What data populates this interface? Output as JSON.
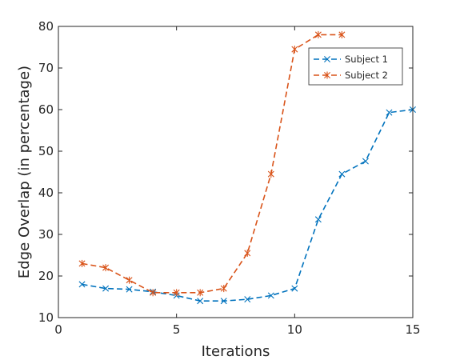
{
  "chart_data": {
    "type": "line",
    "title": "",
    "xlabel": "Iterations",
    "ylabel": "Edge Overlap (in percentage)",
    "xlim": [
      0,
      15
    ],
    "ylim": [
      10,
      80
    ],
    "xticks": [
      0,
      5,
      10,
      15
    ],
    "yticks": [
      10,
      20,
      30,
      40,
      50,
      60,
      70,
      80
    ],
    "grid": false,
    "legend_position": "top-right",
    "series": [
      {
        "name": "Subject 1",
        "color": "#0072BD",
        "marker": "x",
        "line_style": "dashed",
        "x": [
          1,
          2,
          3,
          4,
          5,
          6,
          7,
          8,
          9,
          10,
          11,
          12,
          13,
          14,
          15
        ],
        "y": [
          18,
          17,
          16.8,
          16.2,
          15.3,
          14,
          14,
          14.4,
          15.3,
          17,
          33.6,
          44.5,
          47.6,
          59.3,
          60
        ]
      },
      {
        "name": "Subject 2",
        "color": "#D95319",
        "marker": "asterisk",
        "line_style": "dashed",
        "x": [
          1,
          2,
          3,
          4,
          5,
          6,
          7,
          8,
          9,
          10,
          11,
          12
        ],
        "y": [
          23,
          22,
          19,
          16,
          16,
          16,
          17,
          25.5,
          44.5,
          74.5,
          78,
          78
        ]
      }
    ]
  }
}
